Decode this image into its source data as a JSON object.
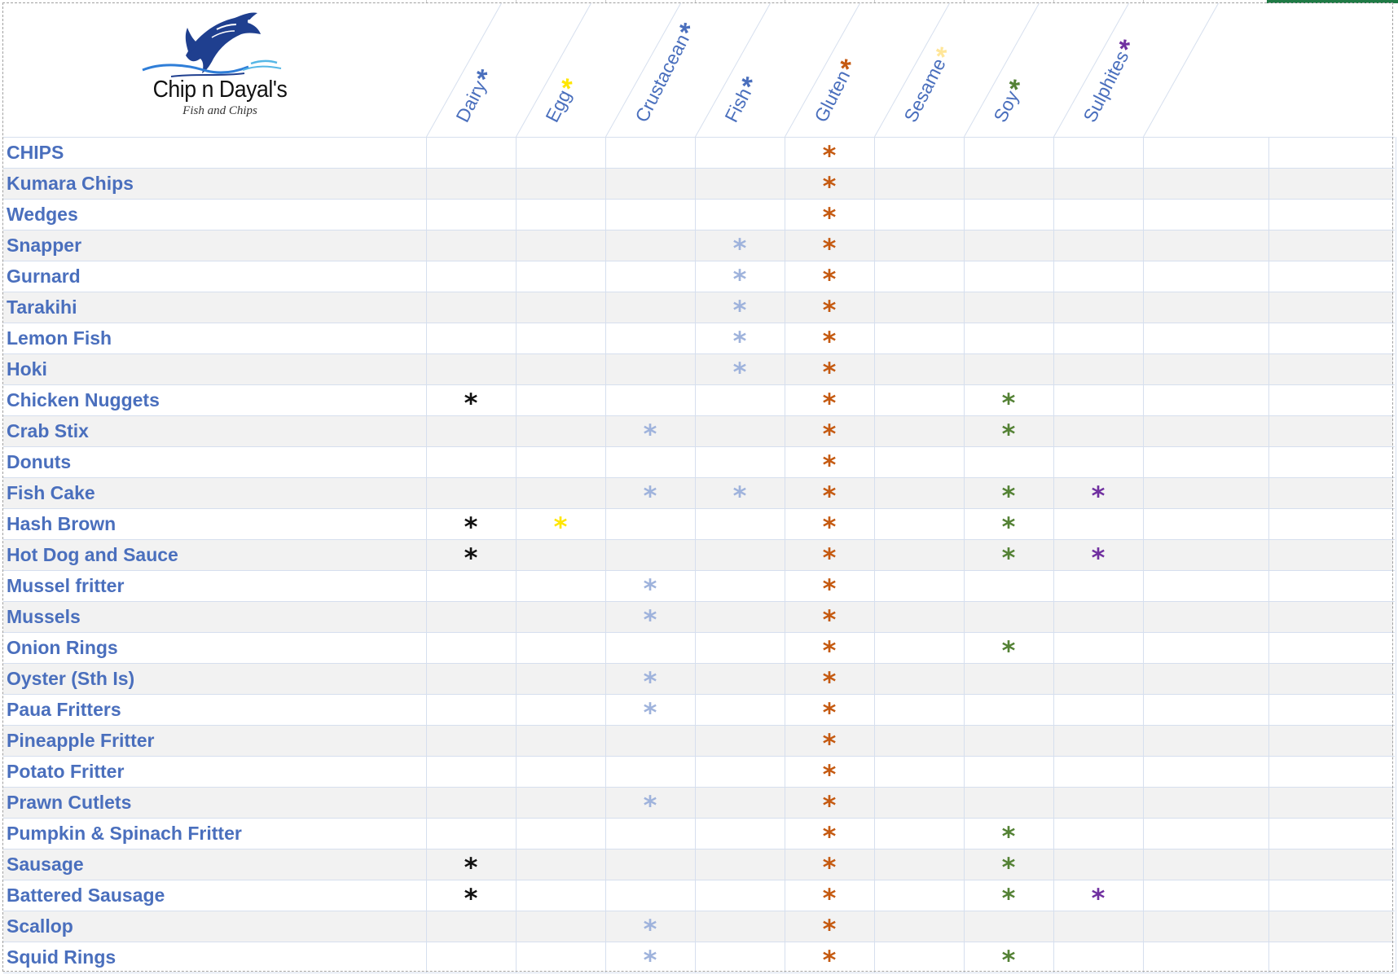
{
  "brand": {
    "name": "Chip n Dayal's",
    "tagline": "Fish and Chips",
    "logo_icon": "fish-logo"
  },
  "colors": {
    "label_blue": "#4a6fbd",
    "accent_green": "#1f7a45",
    "alt_row": "#f2f2f2",
    "grid_line": "#d6dfee"
  },
  "allergens": [
    {
      "label": "Dairy",
      "star": "*",
      "color": "#4a6fbd",
      "cell_color": "#111111"
    },
    {
      "label": "Egg",
      "star": "*",
      "color": "#ffe600",
      "cell_color": "#ffe600"
    },
    {
      "label": "Crustacean",
      "star": "*",
      "color": "#4a6fbd",
      "cell_color": "#9fb3dc"
    },
    {
      "label": "Fish",
      "star": "*",
      "color": "#4a6fbd",
      "cell_color": "#9fb3dc"
    },
    {
      "label": "Gluten",
      "star": "*",
      "color": "#c55a11",
      "cell_color": "#c55a11"
    },
    {
      "label": "Sesame",
      "star": "*",
      "color": "#ffe699",
      "cell_color": "#ffe699"
    },
    {
      "label": "Soy",
      "star": "*",
      "color": "#548235",
      "cell_color": "#548235"
    },
    {
      "label": "Sulphites",
      "star": "*",
      "color": "#7030a0",
      "cell_color": "#7030a0"
    }
  ],
  "items": [
    {
      "name": "CHIPS",
      "allergens": [
        0,
        0,
        0,
        0,
        1,
        0,
        0,
        0
      ]
    },
    {
      "name": "Kumara Chips",
      "allergens": [
        0,
        0,
        0,
        0,
        1,
        0,
        0,
        0
      ]
    },
    {
      "name": "Wedges",
      "allergens": [
        0,
        0,
        0,
        0,
        1,
        0,
        0,
        0
      ]
    },
    {
      "name": "Snapper",
      "allergens": [
        0,
        0,
        0,
        1,
        1,
        0,
        0,
        0
      ]
    },
    {
      "name": "Gurnard",
      "allergens": [
        0,
        0,
        0,
        1,
        1,
        0,
        0,
        0
      ]
    },
    {
      "name": "Tarakihi",
      "allergens": [
        0,
        0,
        0,
        1,
        1,
        0,
        0,
        0
      ]
    },
    {
      "name": "Lemon Fish",
      "allergens": [
        0,
        0,
        0,
        1,
        1,
        0,
        0,
        0
      ]
    },
    {
      "name": "Hoki",
      "allergens": [
        0,
        0,
        0,
        1,
        1,
        0,
        0,
        0
      ]
    },
    {
      "name": "Chicken Nuggets",
      "allergens": [
        1,
        0,
        0,
        0,
        1,
        0,
        1,
        0
      ]
    },
    {
      "name": "Crab Stix",
      "allergens": [
        0,
        0,
        1,
        0,
        1,
        0,
        1,
        0
      ]
    },
    {
      "name": "Donuts",
      "allergens": [
        0,
        0,
        0,
        0,
        1,
        0,
        0,
        0
      ]
    },
    {
      "name": "Fish Cake",
      "allergens": [
        0,
        0,
        1,
        1,
        1,
        0,
        1,
        1
      ]
    },
    {
      "name": "Hash Brown",
      "allergens": [
        1,
        1,
        0,
        0,
        1,
        0,
        1,
        0
      ]
    },
    {
      "name": "Hot Dog and Sauce",
      "allergens": [
        1,
        0,
        0,
        0,
        1,
        0,
        1,
        1
      ]
    },
    {
      "name": "Mussel fritter",
      "allergens": [
        0,
        0,
        1,
        0,
        1,
        0,
        0,
        0
      ]
    },
    {
      "name": "Mussels",
      "allergens": [
        0,
        0,
        1,
        0,
        1,
        0,
        0,
        0
      ]
    },
    {
      "name": "Onion Rings",
      "allergens": [
        0,
        0,
        0,
        0,
        1,
        0,
        1,
        0
      ]
    },
    {
      "name": "Oyster (Sth Is)",
      "allergens": [
        0,
        0,
        1,
        0,
        1,
        0,
        0,
        0
      ]
    },
    {
      "name": "Paua Fritters",
      "allergens": [
        0,
        0,
        1,
        0,
        1,
        0,
        0,
        0
      ]
    },
    {
      "name": "Pineapple Fritter",
      "allergens": [
        0,
        0,
        0,
        0,
        1,
        0,
        0,
        0
      ]
    },
    {
      "name": "Potato Fritter",
      "allergens": [
        0,
        0,
        0,
        0,
        1,
        0,
        0,
        0
      ]
    },
    {
      "name": "Prawn Cutlets",
      "allergens": [
        0,
        0,
        1,
        0,
        1,
        0,
        0,
        0
      ]
    },
    {
      "name": "Pumpkin & Spinach Fritter",
      "allergens": [
        0,
        0,
        0,
        0,
        1,
        0,
        1,
        0
      ]
    },
    {
      "name": "Sausage",
      "allergens": [
        1,
        0,
        0,
        0,
        1,
        0,
        1,
        0
      ]
    },
    {
      "name": "Battered Sausage",
      "allergens": [
        1,
        0,
        0,
        0,
        1,
        0,
        1,
        1
      ]
    },
    {
      "name": "Scallop",
      "allergens": [
        0,
        0,
        1,
        0,
        1,
        0,
        0,
        0
      ]
    },
    {
      "name": "Squid Rings",
      "allergens": [
        0,
        0,
        1,
        0,
        1,
        0,
        1,
        0
      ]
    }
  ]
}
